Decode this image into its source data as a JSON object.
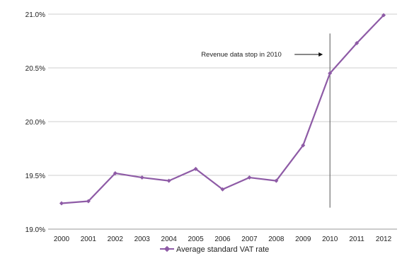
{
  "chart_data": {
    "type": "line",
    "x": [
      "2000",
      "2001",
      "2002",
      "2003",
      "2004",
      "2005",
      "2006",
      "2007",
      "2008",
      "2009",
      "2010",
      "2011",
      "2012"
    ],
    "series": [
      {
        "name": "Average standard VAT rate",
        "values": [
          19.24,
          19.26,
          19.52,
          19.48,
          19.45,
          19.56,
          19.37,
          19.48,
          19.45,
          19.78,
          20.45,
          20.73,
          20.99
        ],
        "color": "#8e5ba6"
      }
    ],
    "ylim": [
      19.0,
      21.0
    ],
    "y_ticks": [
      19.0,
      19.5,
      20.0,
      20.5,
      21.0
    ],
    "y_tick_labels": [
      "19.0%",
      "19.5%",
      "20.0%",
      "20.5%",
      "21.0%"
    ],
    "grid": "horizontal",
    "legend_position": "bottom",
    "annotation": {
      "text": "Revenue data stop in 2010",
      "marker_x": "2010",
      "line_ylim": [
        19.2,
        20.82
      ]
    }
  }
}
